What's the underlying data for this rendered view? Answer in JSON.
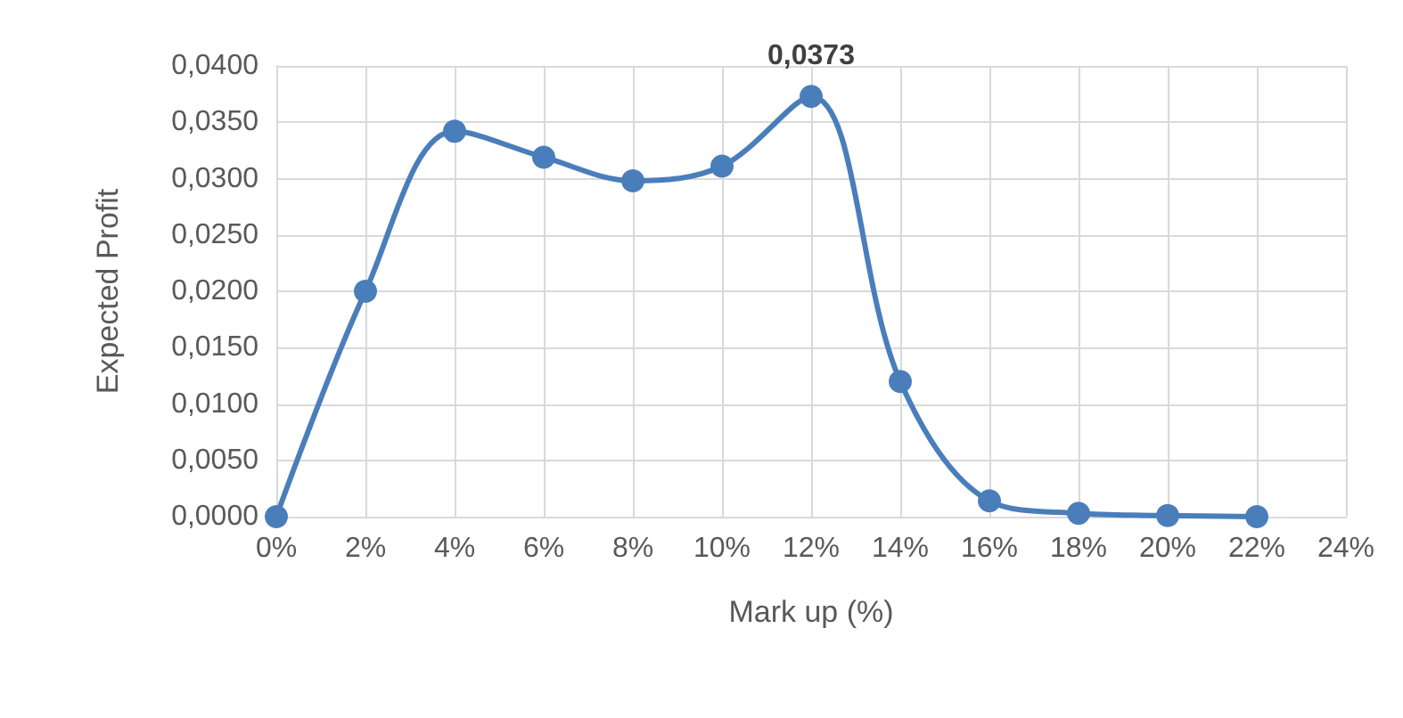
{
  "chart_data": {
    "type": "line",
    "xlabel": "Mark up (%)",
    "ylabel": "Expected Profit",
    "x": [
      0,
      2,
      4,
      6,
      8,
      10,
      12,
      14,
      16,
      18,
      20,
      22
    ],
    "series": [
      {
        "color": "#4a7ebb",
        "values": [
          0,
          0.02,
          0.0342,
          0.0319,
          0.0298,
          0.0311,
          0.0373,
          0.012,
          0.0014,
          0.0003,
          0.0001,
          0
        ],
        "value_labels": [
          null,
          null,
          null,
          null,
          null,
          null,
          "0,0373",
          null,
          null,
          null,
          null,
          null
        ]
      }
    ],
    "xlim": [
      0,
      24
    ],
    "xticks": [
      {
        "value": 0,
        "label": "0%"
      },
      {
        "value": 2,
        "label": "2%"
      },
      {
        "value": 4,
        "label": "4%"
      },
      {
        "value": 6,
        "label": "6%"
      },
      {
        "value": 8,
        "label": "8%"
      },
      {
        "value": 10,
        "label": "10%"
      },
      {
        "value": 12,
        "label": "12%"
      },
      {
        "value": 14,
        "label": "14%"
      },
      {
        "value": 16,
        "label": "16%"
      },
      {
        "value": 18,
        "label": "18%"
      },
      {
        "value": 20,
        "label": "20%"
      },
      {
        "value": 22,
        "label": "22%"
      },
      {
        "value": 24,
        "label": "24%"
      }
    ],
    "ylim": [
      0,
      0.04
    ],
    "yticks": [
      {
        "value": 0,
        "label": "0,0000"
      },
      {
        "value": 0.005,
        "label": "0,0050"
      },
      {
        "value": 0.01,
        "label": "0,0100"
      },
      {
        "value": 0.015,
        "label": "0,0150"
      },
      {
        "value": 0.02,
        "label": "0,0200"
      },
      {
        "value": 0.025,
        "label": "0,0250"
      },
      {
        "value": 0.03,
        "label": "0,0300"
      },
      {
        "value": 0.035,
        "label": "0,0350"
      },
      {
        "value": 0.04,
        "label": "0,0400"
      }
    ],
    "grid": true,
    "marker": "circle",
    "line_style": "solid"
  }
}
